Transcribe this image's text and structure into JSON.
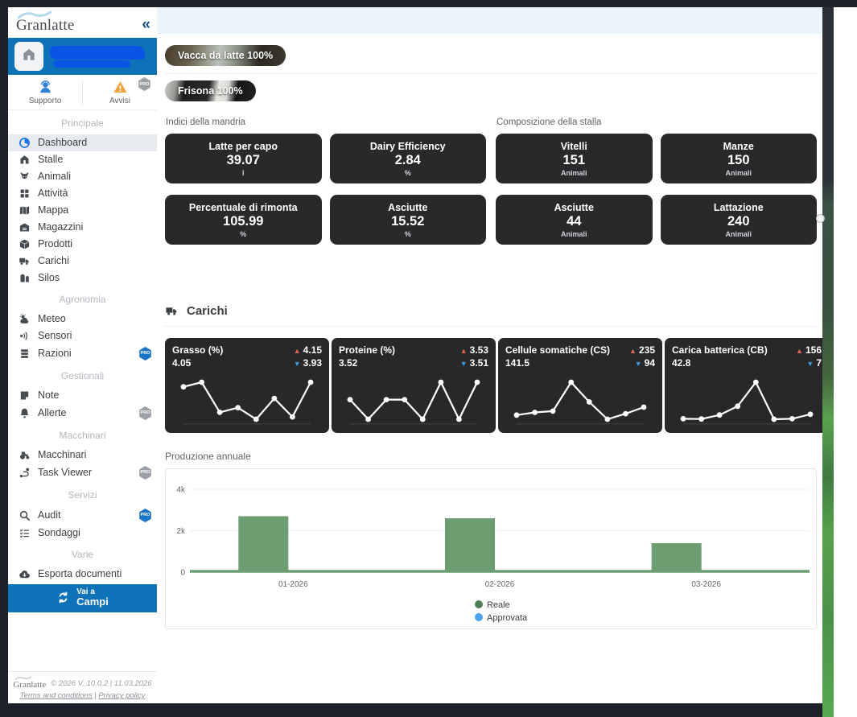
{
  "brand": {
    "name": "Granlatte",
    "collapse_icon": "«"
  },
  "sidebar": {
    "farm_banner": {
      "icon": "barn-icon"
    },
    "quick": [
      {
        "label": "Supporto",
        "icon": "support-icon"
      },
      {
        "label": "Avvisi",
        "icon": "warning-icon",
        "badge": "PRO",
        "badge_style": "gray"
      }
    ],
    "sections": [
      {
        "label": "Principale",
        "items": [
          {
            "label": "Dashboard",
            "icon": "dashboard-icon",
            "active": true
          },
          {
            "label": "Stalle",
            "icon": "barn-icon"
          },
          {
            "label": "Animali",
            "icon": "cow-icon"
          },
          {
            "label": "Attività",
            "icon": "grid-icon"
          },
          {
            "label": "Mappa",
            "icon": "map-icon"
          },
          {
            "label": "Magazzini",
            "icon": "warehouse-icon"
          },
          {
            "label": "Prodotti",
            "icon": "box-icon"
          },
          {
            "label": "Carichi",
            "icon": "truck-icon"
          },
          {
            "label": "Silos",
            "icon": "silo-icon"
          }
        ]
      },
      {
        "label": "Agronomia",
        "items": [
          {
            "label": "Meteo",
            "icon": "weather-icon"
          },
          {
            "label": "Sensori",
            "icon": "sensor-icon"
          },
          {
            "label": "Razioni",
            "icon": "layers-icon",
            "pro": "blue"
          }
        ]
      },
      {
        "label": "Gestionali",
        "items": [
          {
            "label": "Note",
            "icon": "note-icon"
          },
          {
            "label": "Allerte",
            "icon": "bell-icon",
            "pro": "gray"
          }
        ]
      },
      {
        "label": "Macchinari",
        "items": [
          {
            "label": "Macchinari",
            "icon": "tractor-icon"
          },
          {
            "label": "Task Viewer",
            "icon": "route-icon",
            "pro": "gray"
          }
        ]
      },
      {
        "label": "Servizi",
        "items": [
          {
            "label": "Audit",
            "icon": "search-icon",
            "pro": "blue"
          },
          {
            "label": "Sondaggi",
            "icon": "checklist-icon"
          }
        ]
      },
      {
        "label": "Varie",
        "items": [
          {
            "label": "Esporta documenti",
            "icon": "cloud-download-icon"
          }
        ]
      }
    ],
    "goto": {
      "small": "Vai a",
      "big": "Campi",
      "icon": "sync-icon"
    },
    "footer": {
      "brand": "Granlatte",
      "copyright": "© 2026 V. 10.0.2 | 11.03.2026",
      "link_terms": "Terms and conditions",
      "link_privacy": "Privacy policy",
      "link_separator": "|"
    }
  },
  "main": {
    "breed_chips": [
      {
        "label": "Vacca da latte 100%"
      },
      {
        "label": "Frisona 100%"
      }
    ],
    "kpi_groups": [
      {
        "title": "Indici della mandria",
        "cards": [
          {
            "label": "Latte per capo",
            "value": "39.07",
            "unit": "l"
          },
          {
            "label": "Dairy Efficiency",
            "value": "2.84",
            "unit": "%"
          },
          {
            "label": "Percentuale di rimonta",
            "value": "105.99",
            "unit": "%"
          },
          {
            "label": "Asciutte",
            "value": "15.52",
            "unit": "%"
          }
        ]
      },
      {
        "title": "Composizione della stalla",
        "cards": [
          {
            "label": "Vitelli",
            "value": "151",
            "unit": "Animali"
          },
          {
            "label": "Manze",
            "value": "150",
            "unit": "Animali"
          },
          {
            "label": "Asciutte",
            "value": "44",
            "unit": "Animali"
          },
          {
            "label": "Lattazione",
            "value": "240",
            "unit": "Animali"
          }
        ]
      }
    ],
    "loads_section": {
      "title": "Carichi",
      "icon": "truck-icon"
    },
    "production_title": "Produzione annuale"
  },
  "chart_data": [
    {
      "type": "line",
      "title": "Grasso (%)",
      "current": "4.05",
      "max": "4.15",
      "min": "3.93",
      "values": [
        4.08,
        4.1,
        3.97,
        3.99,
        3.94,
        4.03,
        3.95,
        4.1
      ],
      "line_color": "#ffffff"
    },
    {
      "type": "line",
      "title": "Proteine (%)",
      "current": "3.52",
      "max": "3.53",
      "min": "3.51",
      "values": [
        3.52,
        3.511,
        3.52,
        3.52,
        3.511,
        3.528,
        3.511,
        3.528
      ],
      "line_color": "#ffffff"
    },
    {
      "type": "line",
      "title": "Cellule somatiche (CS)",
      "current": "141.5",
      "max": "235",
      "min": "94",
      "values": [
        110,
        120,
        125,
        235,
        160,
        94,
        115,
        140
      ],
      "line_color": "#ffffff"
    },
    {
      "type": "line",
      "title": "Carica batterica (CB)",
      "current": "42.8",
      "max": "156",
      "min": "7",
      "values": [
        10,
        9,
        25,
        60,
        156,
        8,
        10,
        28
      ],
      "line_color": "#ffffff"
    },
    {
      "type": "bar",
      "title": "Produzione annuale",
      "categories": [
        "01-2026",
        "02-2026",
        "03-2026"
      ],
      "series": [
        {
          "name": "Reale",
          "color": "#6d9e72",
          "legend_color": "#4e7e54",
          "values": [
            2700,
            2600,
            1400
          ]
        },
        {
          "name": "Approvata",
          "color": "#4aa3f0",
          "legend_color": "#4aa3f0",
          "values": [
            0,
            0,
            0
          ]
        }
      ],
      "ylim": [
        0,
        4000
      ],
      "yticks": [
        {
          "label": "0",
          "value": 0
        },
        {
          "label": "2k",
          "value": 2000
        },
        {
          "label": "4k",
          "value": 4000
        }
      ],
      "xlabel": "",
      "ylabel": "",
      "grid": true,
      "legend_position": "bottom"
    }
  ]
}
